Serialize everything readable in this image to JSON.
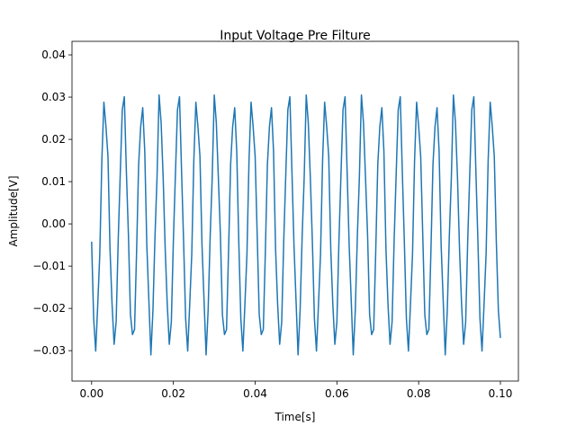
{
  "chart_data": {
    "type": "line",
    "title": "Input Voltage Pre Filture",
    "x_label": "Time[s]",
    "y_label": "Amplitude[V]",
    "xlim": [
      -0.0048,
      0.1044
    ],
    "ylim": [
      -0.0372,
      0.0432
    ],
    "xticks": [
      {
        "value": 0,
        "label": "0.00"
      },
      0.02,
      0.04,
      0.06,
      0.08,
      {
        "value": 0.1,
        "label": "0.10"
      }
    ],
    "yticks": [
      {
        "value": -0.03,
        "label": "−0.03"
      },
      {
        "value": -0.02,
        "label": "−0.02"
      },
      {
        "value": -0.01,
        "label": "−0.01"
      },
      {
        "value": 0,
        "label": "0.00"
      },
      0.01,
      0.02,
      0.03,
      0.04
    ],
    "series": [
      {
        "color": "#1f77b4",
        "x": [
          0,
          0.0005,
          0.001,
          0.0015,
          0.002,
          0.0025,
          0.003,
          0.0035,
          0.004,
          0.0045,
          0.005,
          0.0055,
          0.006,
          0.0065,
          0.007,
          0.0075,
          0.008,
          0.0085,
          0.009,
          0.0095,
          0.01,
          0.0105,
          0.011,
          0.0115,
          0.012,
          0.0125,
          0.013,
          0.0135,
          0.014,
          0.0145,
          0.015,
          0.0155,
          0.016,
          0.0165,
          0.017,
          0.0175,
          0.018,
          0.0185,
          0.019,
          0.0195,
          0.02,
          0.0205,
          0.021,
          0.0215,
          0.022,
          0.0225,
          0.023,
          0.0235,
          0.024,
          0.0245,
          0.025,
          0.0255,
          0.026,
          0.0265,
          0.027,
          0.0275,
          0.028,
          0.0285,
          0.029,
          0.0295,
          0.03,
          0.0305,
          0.031,
          0.0315,
          0.032,
          0.0325,
          0.033,
          0.0335,
          0.034,
          0.0345,
          0.035,
          0.0355,
          0.036,
          0.0365,
          0.037,
          0.0375,
          0.038,
          0.0385,
          0.039,
          0.0395,
          0.04,
          0.0405,
          0.041,
          0.0415,
          0.042,
          0.0425,
          0.043,
          0.0435,
          0.044,
          0.0445,
          0.045,
          0.0455,
          0.046,
          0.0465,
          0.047,
          0.0475,
          0.048,
          0.0485,
          0.049,
          0.0495,
          0.05,
          0.0505,
          0.051,
          0.0515,
          0.052,
          0.0525,
          0.053,
          0.0535,
          0.054,
          0.0545,
          0.055,
          0.0555,
          0.056,
          0.0565,
          0.057,
          0.0575,
          0.058,
          0.0585,
          0.059,
          0.0595,
          0.06,
          0.0605,
          0.061,
          0.0615,
          0.062,
          0.0625,
          0.063,
          0.0635,
          0.064,
          0.0645,
          0.065,
          0.0655,
          0.066,
          0.0665,
          0.067,
          0.0675,
          0.068,
          0.0685,
          0.069,
          0.0695,
          0.07,
          0.0705,
          0.071,
          0.0715,
          0.072,
          0.0725,
          0.073,
          0.0735,
          0.074,
          0.0745,
          0.075,
          0.0755,
          0.076,
          0.0765,
          0.077,
          0.0775,
          0.078,
          0.0785,
          0.079,
          0.0795,
          0.08,
          0.0805,
          0.081,
          0.0815,
          0.082,
          0.0825,
          0.083,
          0.0835,
          0.084,
          0.0845,
          0.085,
          0.0855,
          0.086,
          0.0865,
          0.087,
          0.0875,
          0.088,
          0.0885,
          0.089,
          0.0895,
          0.09,
          0.0905,
          0.091,
          0.0915,
          0.092,
          0.0925,
          0.093,
          0.0935,
          0.094,
          0.0945,
          0.095,
          0.0955,
          0.096,
          0.0965,
          0.097,
          0.0975,
          0.098,
          0.0985,
          0.099,
          0.0995,
          0.1
        ],
        "values": [
          -0.0042,
          -0.0224,
          -0.0301,
          -0.019,
          -0.0071,
          0.015,
          0.0288,
          0.0231,
          0.016,
          -0.006,
          -0.019,
          -0.0285,
          -0.0232,
          -0.004,
          0.0118,
          0.027,
          0.0301,
          0.0125,
          -0.0025,
          -0.0215,
          -0.0262,
          -0.025,
          -0.0065,
          0.014,
          0.023,
          0.0275,
          0.0172,
          -0.005,
          -0.018,
          -0.031,
          -0.0205,
          -0.003,
          0.011,
          0.0305,
          0.024,
          0.011,
          -0.006,
          -0.019,
          -0.0285,
          -0.0232,
          -0.004,
          0.0118,
          0.027,
          0.0301,
          0.0125,
          -0.0042,
          -0.0224,
          -0.0301,
          -0.019,
          -0.0071,
          0.015,
          0.0288,
          0.0231,
          0.016,
          -0.005,
          -0.018,
          -0.031,
          -0.0205,
          -0.003,
          0.011,
          0.0305,
          0.024,
          0.011,
          -0.0025,
          -0.0215,
          -0.0262,
          -0.025,
          -0.0065,
          0.014,
          0.023,
          0.0275,
          0.0172,
          -0.0042,
          -0.0224,
          -0.0301,
          -0.019,
          -0.0071,
          0.015,
          0.0288,
          0.0231,
          0.016,
          -0.0025,
          -0.0215,
          -0.0262,
          -0.025,
          -0.0065,
          0.014,
          0.023,
          0.0275,
          0.0172,
          -0.006,
          -0.019,
          -0.0285,
          -0.0232,
          -0.004,
          0.0118,
          0.027,
          0.0301,
          0.0125,
          -0.005,
          -0.018,
          -0.031,
          -0.0205,
          -0.003,
          0.011,
          0.0305,
          0.024,
          0.011,
          -0.0042,
          -0.0224,
          -0.0301,
          -0.019,
          -0.0071,
          0.015,
          0.0288,
          0.0231,
          0.016,
          -0.006,
          -0.019,
          -0.0285,
          -0.0232,
          -0.004,
          0.0118,
          0.027,
          0.0301,
          0.0125,
          -0.005,
          -0.018,
          -0.031,
          -0.0205,
          -0.003,
          0.011,
          0.0305,
          0.024,
          0.011,
          -0.0025,
          -0.0215,
          -0.0262,
          -0.025,
          -0.0065,
          0.014,
          0.023,
          0.0275,
          0.0172,
          -0.006,
          -0.019,
          -0.0285,
          -0.0232,
          -0.004,
          0.0118,
          0.027,
          0.0301,
          0.0125,
          -0.0042,
          -0.0224,
          -0.0301,
          -0.019,
          -0.0071,
          0.015,
          0.0288,
          0.0231,
          0.016,
          -0.0025,
          -0.0215,
          -0.0262,
          -0.025,
          -0.0065,
          0.014,
          0.023,
          0.0275,
          0.0172,
          -0.005,
          -0.018,
          -0.031,
          -0.0205,
          -0.003,
          0.011,
          0.0305,
          0.024,
          0.011,
          -0.006,
          -0.019,
          -0.0285,
          -0.0232,
          -0.004,
          0.0118,
          0.027,
          0.0301,
          0.0125,
          -0.0042,
          -0.0224,
          -0.0301,
          -0.019,
          -0.0071,
          0.015,
          0.0288,
          0.0231,
          0.016,
          -0.0042,
          -0.0204,
          -0.027
        ]
      }
    ]
  }
}
